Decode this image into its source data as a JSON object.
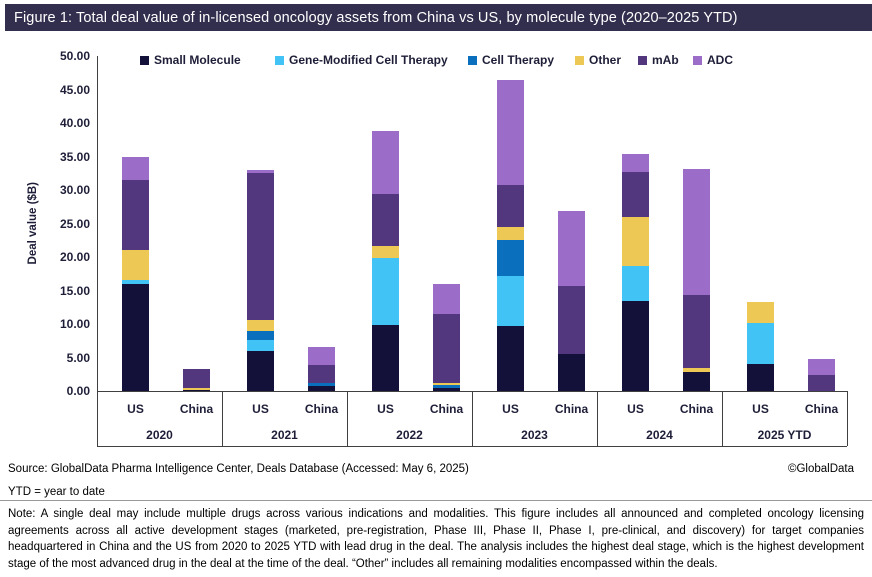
{
  "chart_data": {
    "type": "bar",
    "stacked": true,
    "title": "Figure 1: Total deal value of in-licensed oncology assets from China vs US, by molecule type (2020–2025 YTD)",
    "ylabel": "Deal value ($B)",
    "ylim": [
      0,
      50
    ],
    "ytick_step": 5,
    "ytick_decimals": 2,
    "gridlines": false,
    "legend_position": "top",
    "groups": [
      "2020",
      "2021",
      "2022",
      "2023",
      "2024",
      "2025 YTD"
    ],
    "subcategories": [
      "US",
      "China"
    ],
    "series": [
      {
        "name": "Small Molecule",
        "color": "#131139",
        "values": {
          "US": [
            16.0,
            6.0,
            9.9,
            9.7,
            13.5,
            4.0
          ],
          "China": [
            0.2,
            0.8,
            0.4,
            5.5,
            2.9,
            0.0
          ]
        }
      },
      {
        "name": "Gene-Modified Cell Therapy",
        "color": "#41C3F5",
        "values": {
          "US": [
            0.6,
            1.6,
            10.0,
            7.4,
            5.2,
            6.1
          ],
          "China": [
            0.0,
            0.0,
            0.0,
            0.0,
            0.0,
            0.0
          ]
        }
      },
      {
        "name": "Cell Therapy",
        "color": "#0A70BE",
        "values": {
          "US": [
            0.0,
            1.35,
            0.0,
            5.5,
            0.0,
            0.0
          ],
          "China": [
            0.0,
            0.45,
            0.45,
            0.0,
            0.0,
            0.0
          ]
        }
      },
      {
        "name": "Other",
        "color": "#EDC854",
        "values": {
          "US": [
            4.5,
            1.6,
            1.75,
            1.9,
            7.2,
            3.2
          ],
          "China": [
            0.3,
            0.0,
            0.3,
            0.0,
            0.6,
            0.0
          ]
        }
      },
      {
        "name": "mAb",
        "color": "#53377E",
        "values": {
          "US": [
            10.4,
            22.0,
            7.8,
            6.2,
            6.8,
            0.0
          ],
          "China": [
            2.8,
            2.6,
            10.35,
            10.1,
            10.8,
            2.4
          ]
        }
      },
      {
        "name": "ADC",
        "color": "#9C6CC9",
        "values": {
          "US": [
            3.5,
            0.45,
            9.3,
            15.7,
            2.7,
            0.0
          ],
          "China": [
            0.0,
            2.7,
            4.5,
            11.3,
            18.8,
            2.4
          ]
        }
      }
    ]
  },
  "footer": {
    "source": "Source: GlobalData Pharma Intelligence Center, Deals Database (Accessed: May 6, 2025)",
    "copyright": "©GlobalData",
    "ytd_note": "YTD = year to date",
    "note": "Note: A single deal may include multiple drugs across various indications and modalities. This figure includes all announced and completed oncology licensing agreements across all active development stages (marketed, pre-registration, Phase III, Phase II, Phase I, pre-clinical, and discovery) for target companies headquartered in China and the US from 2020 to 2025 YTD with lead drug in the deal. The analysis includes the highest deal stage, which is the highest development stage of the most advanced drug in the deal at the time of the deal. “Other” includes all remaining modalities encompassed within the deals."
  },
  "colors": {
    "title_bar_bg": "#322E4D",
    "axis_text": "#1E1E38",
    "axis_line": "#404040"
  }
}
